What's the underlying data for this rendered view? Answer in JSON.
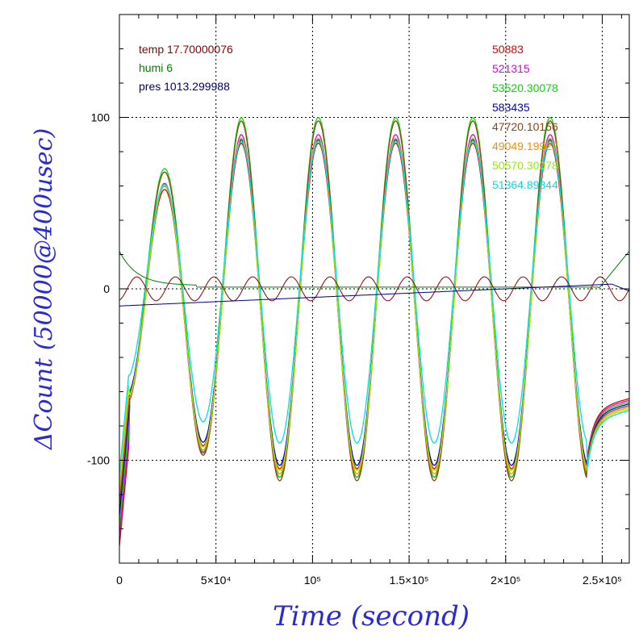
{
  "chart_data": {
    "type": "line",
    "xlabel": "Time (second)",
    "ylabel": "ΔCount (50000@400usec)",
    "axis_label_color": "#2a2ad2",
    "xlim": [
      0,
      264000
    ],
    "ylim": [
      -160,
      160
    ],
    "grid": true,
    "x_ticks": [
      {
        "value": 0,
        "label": "0"
      },
      {
        "value": 50000,
        "label": "5×10⁴"
      },
      {
        "value": 100000,
        "label": "10⁵"
      },
      {
        "value": 150000,
        "label": "1.5×10⁵"
      },
      {
        "value": 200000,
        "label": "2×10⁵"
      },
      {
        "value": 250000,
        "label": "2.5×10⁵"
      }
    ],
    "y_ticks": [
      {
        "value": -100,
        "label": "-100"
      },
      {
        "value": 0,
        "label": "0"
      },
      {
        "value": 100,
        "label": "100"
      }
    ],
    "env_legend": [
      {
        "label": "temp 17.70000076",
        "color": "#8b0000"
      },
      {
        "label": "humi 6",
        "color": "#008000"
      },
      {
        "label": "pres 1013.299988",
        "color": "#000080"
      }
    ],
    "series": [
      {
        "name": "50883",
        "color": "#e00000",
        "amplitude": 95,
        "offset": 0
      },
      {
        "name": "521315",
        "color": "#e000e0",
        "amplitude": 100,
        "offset": 0
      },
      {
        "name": "53520.30078",
        "color": "#00dd00",
        "amplitude": 105,
        "offset": 5
      },
      {
        "name": "583435",
        "color": "#0000d0",
        "amplitude": 95,
        "offset": 2
      },
      {
        "name": "47720.10156",
        "color": "#8b4513",
        "amplitude": 105,
        "offset": 3
      },
      {
        "name": "49049.19922",
        "color": "#ff8c00",
        "amplitude": 98,
        "offset": 0
      },
      {
        "name": "50570.30078",
        "color": "#90ee00",
        "amplitude": 97,
        "offset": 1
      },
      {
        "name": "51364.89844",
        "color": "#00e0e0",
        "amplitude": 88,
        "offset": 8
      }
    ],
    "oscillation_period": 40000,
    "first_peak_x": 23000,
    "final_plateau_y": -70
  }
}
